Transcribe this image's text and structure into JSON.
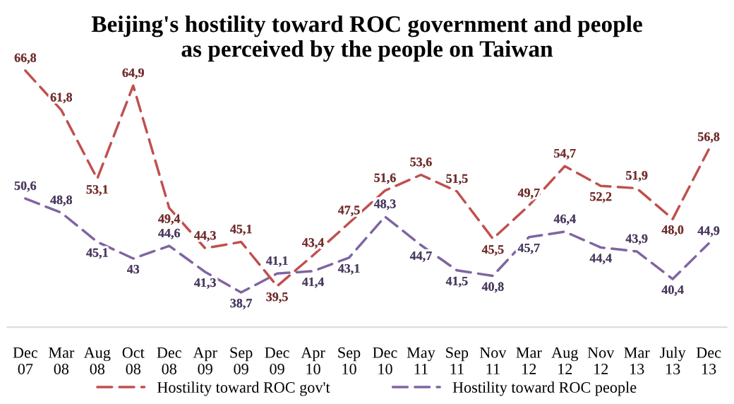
{
  "chart_data": {
    "type": "line",
    "title": "Beijing's hostility toward ROC government and people\nas perceived by the people on Taiwan",
    "categories": [
      "Dec\n07",
      "Mar\n08",
      "Aug\n08",
      "Oct\n08",
      "Dec\n08",
      "Apr\n09",
      "Sep\n09",
      "Dec\n09",
      "Apr\n10",
      "Sep\n10",
      "Dec\n10",
      "May\n11",
      "Sep\n11",
      "Nov\n11",
      "Mar\n12",
      "Aug\n12",
      "Nov\n12",
      "Mar\n13",
      "July\n13",
      "Dec\n13"
    ],
    "series": [
      {
        "name": "Hostility toward ROC gov't",
        "color": "#c0504d",
        "values": [
          66.8,
          61.8,
          53.1,
          64.9,
          49.4,
          44.3,
          45.1,
          39.5,
          43.4,
          47.5,
          51.6,
          53.6,
          51.5,
          45.5,
          49.7,
          54.7,
          52.2,
          51.9,
          48.0,
          56.8
        ],
        "value_labels": [
          "66,8",
          "61,8",
          "53,1",
          "64,9",
          "49,4",
          "44,3",
          "45,1",
          "39,5",
          "43,4",
          "47,5",
          "51,6",
          "53,6",
          "51,5",
          "45,5",
          "49,7",
          "54,7",
          "52,2",
          "51,9",
          "48,0",
          "56,8"
        ]
      },
      {
        "name": "Hostility toward ROC people",
        "color": "#8064a2",
        "values": [
          50.6,
          48.8,
          45.1,
          43,
          44.6,
          41.3,
          38.7,
          41.1,
          41.4,
          43.1,
          48.3,
          44.7,
          41.5,
          40.8,
          45.7,
          46.4,
          44.4,
          43.9,
          40.4,
          44.9
        ],
        "value_labels": [
          "50,6",
          "48,8",
          "45,1",
          "43",
          "44,6",
          "41,3",
          "38,7",
          "41,1",
          "41,4",
          "43,1",
          "48,3",
          "44,7",
          "41,5",
          "40,8",
          "45,7",
          "46,4",
          "44,4",
          "43,9",
          "40,4",
          "44,9"
        ]
      }
    ],
    "line_style": "dashed",
    "grid": false,
    "legend": "bottom",
    "tick_labels": "x"
  }
}
